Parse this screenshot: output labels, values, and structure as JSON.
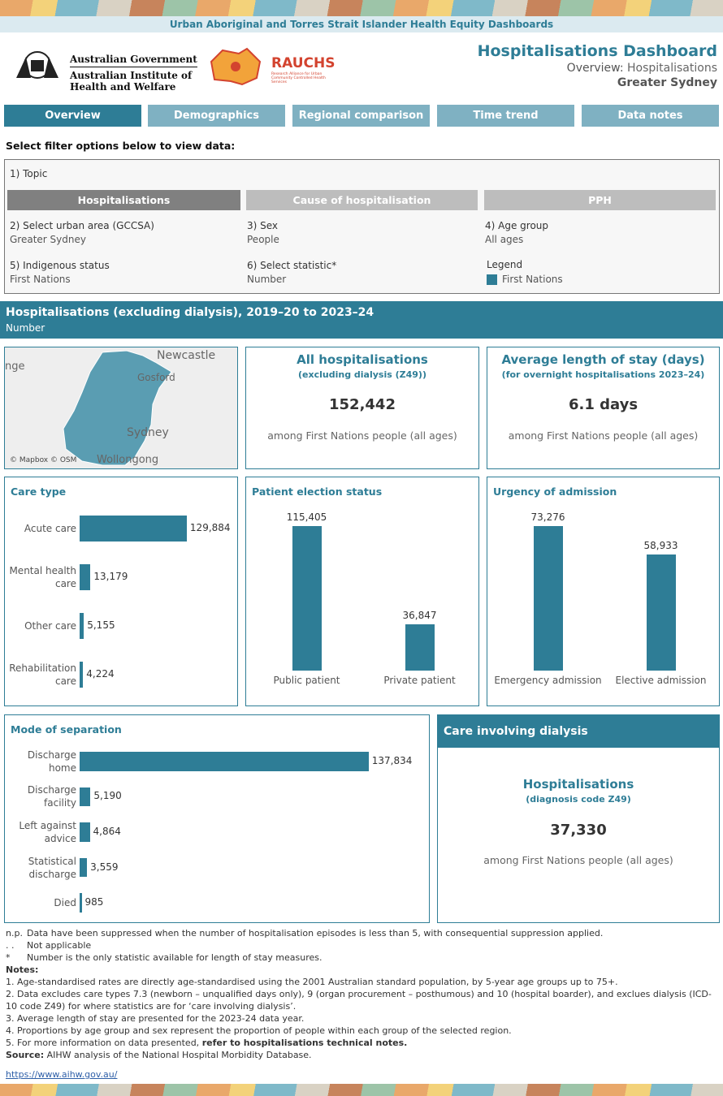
{
  "banner": "Urban Aboriginal and Torres Strait Islander Health Equity Dashboards",
  "logos": {
    "gov_line1": "Australian Government",
    "gov_line2": "Australian Institute of",
    "gov_line3": "Health and Welfare",
    "rauchs": "RAUCHS",
    "rauchs_sub": "Research Alliance for Urban Community Controlled Health Services"
  },
  "header": {
    "title": "Hospitalisations Dashboard",
    "overview_label": "Overview:",
    "overview_value": "Hospitalisations",
    "region": "Greater Sydney"
  },
  "tabs": [
    "Overview",
    "Demographics",
    "Regional comparison",
    "Time trend",
    "Data notes"
  ],
  "filters": {
    "prompt": "Select filter options below to view data:",
    "topic_label": "1) Topic",
    "topics": [
      "Hospitalisations",
      "Cause of hospitalisation",
      "PPH"
    ],
    "fields": [
      {
        "label": "2) Select urban area (GCCSA)",
        "value": "Greater Sydney"
      },
      {
        "label": "3) Sex",
        "value": "People"
      },
      {
        "label": "4) Age group",
        "value": "All ages"
      },
      {
        "label": "5) Indigenous status",
        "value": "First Nations"
      },
      {
        "label": "6) Select statistic*",
        "value": "Number"
      }
    ],
    "legend_label": "Legend",
    "legend_item": "First Nations"
  },
  "section": {
    "title": "Hospitalisations (excluding dialysis), 2019–20 to 2023–24",
    "subtitle": "Number"
  },
  "map": {
    "labels": [
      "Newcastle",
      "Gosford",
      "Sydney",
      "Wollongong",
      "nge"
    ],
    "credit": "© Mapbox © OSM"
  },
  "kpis": [
    {
      "title": "All hospitalisations",
      "subtitle": "(excluding dialysis (Z49))",
      "value": "152,442",
      "note": "among First Nations people (all ages)"
    },
    {
      "title": "Average length of stay (days)",
      "subtitle": "(for overnight hospitalisations 2023–24)",
      "value": "6.1 days",
      "note": "among First Nations people (all ages)"
    }
  ],
  "chart_data": [
    {
      "type": "hbar",
      "title": "Care type",
      "categories": [
        "Acute care",
        "Mental health care",
        "Other care",
        "Rehabilitation care"
      ],
      "values": [
        129884,
        13179,
        5155,
        4224
      ],
      "value_labels": [
        "129,884",
        "13,179",
        "5,155",
        "4,224"
      ],
      "color": "#2e7d96",
      "xlim": [
        0,
        190000
      ]
    },
    {
      "type": "vbar",
      "title": "Patient election status",
      "categories": [
        "Public patient",
        "Private patient"
      ],
      "values": [
        115405,
        36847
      ],
      "value_labels": [
        "115,405",
        "36,847"
      ],
      "color": "#2e7d96",
      "ylim": [
        0,
        133000
      ]
    },
    {
      "type": "vbar",
      "title": "Urgency of admission",
      "categories": [
        "Emergency admission",
        "Elective admission"
      ],
      "values": [
        73276,
        58933
      ],
      "value_labels": [
        "73,276",
        "58,933"
      ],
      "color": "#2e7d96",
      "ylim": [
        0,
        84500
      ]
    },
    {
      "type": "hbar",
      "title": "Mode of separation",
      "categories": [
        "Discharge home",
        "Discharge facility",
        "Left against advice",
        "Statistical discharge",
        "Died"
      ],
      "values": [
        137834,
        5190,
        4864,
        3559,
        985
      ],
      "value_labels": [
        "137,834",
        "5,190",
        "4,864",
        "3,559",
        "985"
      ],
      "color": "#2e7d96",
      "xlim": [
        0,
        160000
      ]
    }
  ],
  "dialysis": {
    "header": "Care involving dialysis",
    "title": "Hospitalisations",
    "subtitle": "(diagnosis code Z49)",
    "value": "37,330",
    "note": "among First Nations people (all ages)"
  },
  "footnotes": {
    "symbols": [
      {
        "symbol": "n.p.",
        "text": "Data have been suppressed when the number of hospitalisation episodes is less than 5, with consequential suppression applied."
      },
      {
        "symbol": ". .",
        "text": "Not applicable"
      },
      {
        "symbol": "*",
        "text": "Number is the only statistic available for length of stay measures."
      }
    ],
    "notes_label": "Notes:",
    "notes": [
      "1. Age-standardised rates are directly age-standardised using the 2001 Australian standard population, by 5-year age groups up to 75+.",
      "2. Data excludes care types 7.3 (newborn – unqualified days only), 9 (organ procurement – posthumous) and 10 (hospital boarder), and exclues dialysis (ICD-10 code Z49) for where statistics are for ‘care involving dialysis’.",
      "3. Average length of stay are presented for the 2023-24 data year.",
      "4. Proportions by age group and sex represent the proportion of people within each group of the selected region."
    ],
    "note5_text": "5. For more information on data presented, ",
    "note5_link": "refer to hospitalisations technical notes.",
    "source_label": "Source:",
    "source_text": " AIHW analysis of the National Hospital Morbidity Database.",
    "link": "https://www.aihw.gov.au/"
  }
}
